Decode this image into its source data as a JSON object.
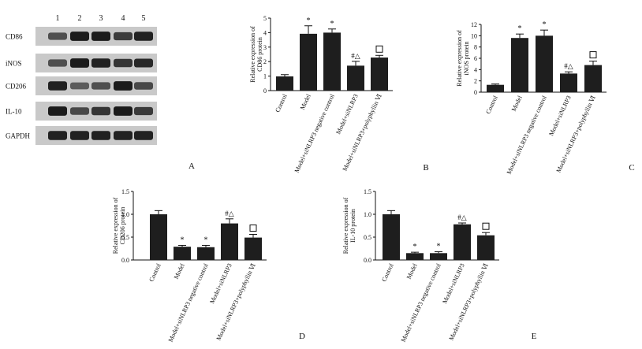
{
  "figure": {
    "panel_labels": [
      "A",
      "B",
      "C",
      "D",
      "E"
    ]
  },
  "blot": {
    "lane_labels": [
      "1",
      "2",
      "3",
      "4",
      "5"
    ],
    "rows": [
      {
        "label": "CD86",
        "intensity": [
          0.55,
          0.95,
          0.95,
          0.7,
          0.9
        ]
      },
      {
        "label": "iNOS",
        "intensity": [
          0.55,
          0.95,
          0.9,
          0.75,
          0.85
        ]
      },
      {
        "label": "CD206",
        "intensity": [
          0.9,
          0.45,
          0.55,
          0.95,
          0.6
        ]
      },
      {
        "label": "IL-10",
        "intensity": [
          0.95,
          0.6,
          0.75,
          0.95,
          0.7
        ]
      },
      {
        "label": "GAPDH",
        "intensity": [
          0.9,
          0.9,
          0.9,
          0.9,
          0.9
        ]
      }
    ]
  },
  "chart_data": [
    {
      "panel": "B",
      "type": "bar",
      "ylabel": [
        "Relative expression of",
        "CD86 protein"
      ],
      "ylim": [
        0,
        5
      ],
      "yticks": [
        "0",
        "1",
        "2",
        "3",
        "4",
        "5"
      ],
      "categories": [
        "Control",
        "Model",
        "Model+siNLRP3 negative control",
        "Model+siNLRP3",
        "Model+siNLRP3+polyphyllin Ⅵ"
      ],
      "values": [
        0.98,
        3.92,
        4.0,
        1.72,
        2.28
      ],
      "errors": [
        0.12,
        0.55,
        0.25,
        0.3,
        0.15
      ],
      "annotations": [
        "",
        "*",
        "*",
        "#△",
        "□"
      ]
    },
    {
      "panel": "C",
      "type": "bar",
      "ylabel": [
        "Relative expression of",
        "iNOS protein"
      ],
      "ylim": [
        0,
        12
      ],
      "yticks": [
        "0",
        "2",
        "4",
        "6",
        "8",
        "10",
        "12"
      ],
      "categories": [
        "Control",
        "Model",
        "Model+siNLRP3 negative control",
        "Model+siNLRP3",
        "Model+siNLRP3+polyphyllin Ⅵ"
      ],
      "values": [
        1.3,
        9.6,
        10.0,
        3.3,
        4.8
      ],
      "errors": [
        0.15,
        0.7,
        1.0,
        0.3,
        0.7
      ],
      "annotations": [
        "",
        "*",
        "*",
        "#△",
        "□"
      ]
    },
    {
      "panel": "D",
      "type": "bar",
      "ylabel": [
        "Relative expression of",
        "CD206 protein"
      ],
      "ylim": [
        0,
        1.5
      ],
      "yticks": [
        "0.0",
        "0.5",
        "1.0",
        "1.5"
      ],
      "categories": [
        "Control",
        "Model",
        "Model+siNLRP3 negative control",
        "Model+siNLRP3",
        "Model+siNLRP3+polyphyllin Ⅵ"
      ],
      "values": [
        1.0,
        0.29,
        0.28,
        0.8,
        0.49
      ],
      "errors": [
        0.08,
        0.03,
        0.04,
        0.1,
        0.07
      ],
      "annotations": [
        "",
        "*",
        "*",
        "#△",
        "□"
      ]
    },
    {
      "panel": "E",
      "type": "bar",
      "ylabel": [
        "Relative expression of",
        "IL-10 protein"
      ],
      "ylim": [
        0,
        1.5
      ],
      "yticks": [
        "0.0",
        "0.5",
        "1.0",
        "1.5"
      ],
      "categories": [
        "Control",
        "Model",
        "Model+siNLRP3 negative control",
        "Model+siNLRP3",
        "Model+siNLRP3+polyphyllin Ⅵ"
      ],
      "values": [
        1.0,
        0.15,
        0.15,
        0.78,
        0.54
      ],
      "errors": [
        0.08,
        0.02,
        0.03,
        0.03,
        0.06
      ],
      "annotations": [
        "",
        "*",
        "*",
        "#△",
        "□"
      ]
    }
  ]
}
